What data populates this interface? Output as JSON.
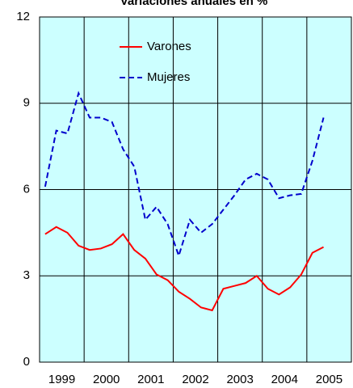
{
  "chart_data": {
    "type": "line",
    "title": "Variaciones anuales en %",
    "categories": [
      "1999",
      null,
      null,
      null,
      "2000",
      null,
      null,
      null,
      "2001",
      null,
      null,
      null,
      "2002",
      null,
      null,
      null,
      "2003",
      null,
      null,
      null,
      "2004",
      null,
      null,
      null,
      "2005",
      null,
      null,
      null
    ],
    "series": [
      {
        "name": "Varones",
        "color": "#ff0000",
        "dash": false,
        "values": [
          4.45,
          4.7,
          4.5,
          4.05,
          3.9,
          3.95,
          4.1,
          4.45,
          3.9,
          3.6,
          3.05,
          2.85,
          2.45,
          2.2,
          1.9,
          1.8,
          2.55,
          2.65,
          2.75,
          3.0,
          2.55,
          2.35,
          2.6,
          3.05,
          3.8,
          4.0,
          null,
          null
        ]
      },
      {
        "name": "Mujeres",
        "color": "#0000cc",
        "dash": true,
        "values": [
          6.1,
          8.05,
          7.95,
          9.35,
          8.5,
          8.5,
          8.35,
          7.4,
          6.8,
          4.95,
          5.4,
          4.8,
          3.7,
          4.95,
          4.5,
          4.8,
          5.3,
          5.8,
          6.35,
          6.55,
          6.35,
          5.7,
          5.8,
          5.85,
          7.0,
          8.5,
          null,
          null
        ]
      }
    ],
    "ylim": [
      0,
      12
    ],
    "yticks": [
      0,
      3,
      6,
      9,
      12
    ],
    "grid": true,
    "legend": "upper left",
    "background": "#ccffff"
  }
}
